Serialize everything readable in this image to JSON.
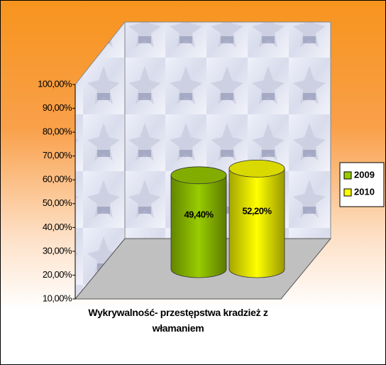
{
  "chart_data": {
    "type": "bar3d",
    "categories": [
      "Wykrywalność- przestępstwa kradzież z włamaniem"
    ],
    "series": [
      {
        "name": "2009",
        "color": "#99cc00",
        "values": [
          49.4
        ],
        "value_labels": [
          "49,40%"
        ]
      },
      {
        "name": "2010",
        "color": "#ffff00",
        "values": [
          52.2
        ],
        "value_labels": [
          "52,20%"
        ]
      }
    ],
    "ylim": [
      10,
      100
    ],
    "yticks": [
      {
        "value": 10,
        "label": "10,00%"
      },
      {
        "value": 20,
        "label": "20,00%"
      },
      {
        "value": 30,
        "label": "30,00%"
      },
      {
        "value": 40,
        "label": "40,00%"
      },
      {
        "value": 50,
        "label": "50,00%"
      },
      {
        "value": 60,
        "label": "60,00%"
      },
      {
        "value": 70,
        "label": "70,00%"
      },
      {
        "value": 80,
        "label": "80,00%"
      },
      {
        "value": 90,
        "label": "90,00%"
      },
      {
        "value": 100,
        "label": "100,00%"
      }
    ],
    "legend": "right"
  }
}
